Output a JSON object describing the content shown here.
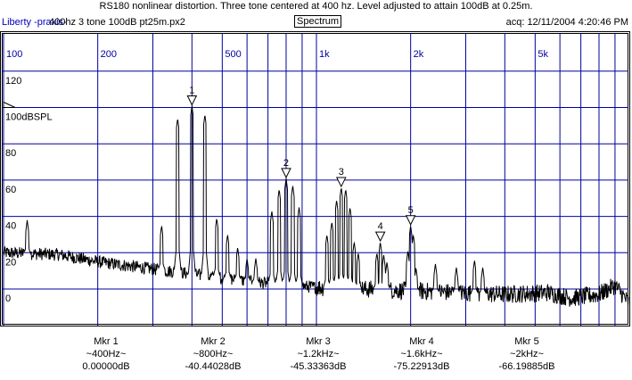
{
  "header": {
    "title": "RS180 nonlinear distortion. Three tone centered at 400 hz.  Level adjusted to attain 100dB at 0.25m.",
    "brand": "Liberty -praxis-",
    "file": "400hz 3 tone 100dB pt25m.px2",
    "mode": "Spectrum",
    "acq": "acq: 12/11/2004 4:20:46 PM"
  },
  "chart_data": {
    "type": "line",
    "title": "Spectrum",
    "xscale": "log",
    "xlim": [
      100,
      10000
    ],
    "ylim": [
      -20,
      141
    ],
    "x_ticks": [
      {
        "v": 100,
        "label": "100"
      },
      {
        "v": 200,
        "label": "200"
      },
      {
        "v": 500,
        "label": "500"
      },
      {
        "v": 1000,
        "label": "1k"
      },
      {
        "v": 2000,
        "label": "2k"
      },
      {
        "v": 5000,
        "label": "5k"
      }
    ],
    "x_grid": [
      100,
      200,
      300,
      400,
      500,
      600,
      700,
      800,
      900,
      1000,
      2000,
      3000,
      4000,
      5000,
      6000,
      7000,
      8000,
      9000
    ],
    "y_ticks": [
      {
        "v": 120,
        "label": "120"
      },
      {
        "v": 100,
        "label": "100dBSPL"
      },
      {
        "v": 80,
        "label": "80"
      },
      {
        "v": 60,
        "label": "60"
      },
      {
        "v": 40,
        "label": "40"
      },
      {
        "v": 20,
        "label": "20"
      },
      {
        "v": 0,
        "label": "0"
      }
    ],
    "reference_level": 100,
    "noise_floor": [
      [
        100,
        20
      ],
      [
        150,
        19
      ],
      [
        200,
        15
      ],
      [
        300,
        11
      ],
      [
        500,
        6
      ],
      [
        700,
        3
      ],
      [
        1000,
        1
      ],
      [
        2000,
        -1
      ],
      [
        4000,
        -3
      ],
      [
        5500,
        -2
      ],
      [
        6500,
        -5
      ],
      [
        8000,
        -3
      ],
      [
        9000,
        2
      ],
      [
        10000,
        -8
      ]
    ],
    "peaks": [
      [
        119,
        38
      ],
      [
        320,
        35
      ],
      [
        360,
        94
      ],
      [
        400,
        101
      ],
      [
        440,
        96
      ],
      [
        480,
        39
      ],
      [
        520,
        30
      ],
      [
        560,
        23
      ],
      [
        600,
        17
      ],
      [
        640,
        17
      ],
      [
        720,
        43
      ],
      [
        760,
        55
      ],
      [
        800,
        61
      ],
      [
        840,
        57
      ],
      [
        880,
        45
      ],
      [
        1080,
        30
      ],
      [
        1120,
        37
      ],
      [
        1160,
        49
      ],
      [
        1200,
        56
      ],
      [
        1240,
        55
      ],
      [
        1280,
        45
      ],
      [
        1320,
        26
      ],
      [
        1360,
        20
      ],
      [
        1560,
        20
      ],
      [
        1600,
        26
      ],
      [
        1640,
        19
      ],
      [
        1680,
        15
      ],
      [
        1960,
        21
      ],
      [
        2000,
        35
      ],
      [
        2040,
        30
      ],
      [
        2080,
        12
      ],
      [
        2400,
        14
      ],
      [
        2800,
        12
      ],
      [
        3200,
        16
      ],
      [
        3400,
        12
      ]
    ],
    "markers": [
      {
        "label": "1",
        "freq": 400,
        "db": 101
      },
      {
        "label": "2",
        "freq": 800,
        "db": 61
      },
      {
        "label": "3",
        "freq": 1200,
        "db": 56
      },
      {
        "label": "4",
        "freq": 1600,
        "db": 26
      },
      {
        "label": "5",
        "freq": 2000,
        "db": 35
      }
    ]
  },
  "readouts": [
    {
      "name": "Mkr 1",
      "freq": "~400Hz~",
      "value": "0.00000dB"
    },
    {
      "name": "Mkr 2",
      "freq": "~800Hz~",
      "value": "-40.44028dB"
    },
    {
      "name": "Mkr 3",
      "freq": "~1.2kHz~",
      "value": "-45.33363dB"
    },
    {
      "name": "Mkr 4",
      "freq": "~1.6kHz~",
      "value": "-75.22913dB"
    },
    {
      "name": "Mkr 5",
      "freq": "~2kHz~",
      "value": "-66.19885dB"
    }
  ]
}
